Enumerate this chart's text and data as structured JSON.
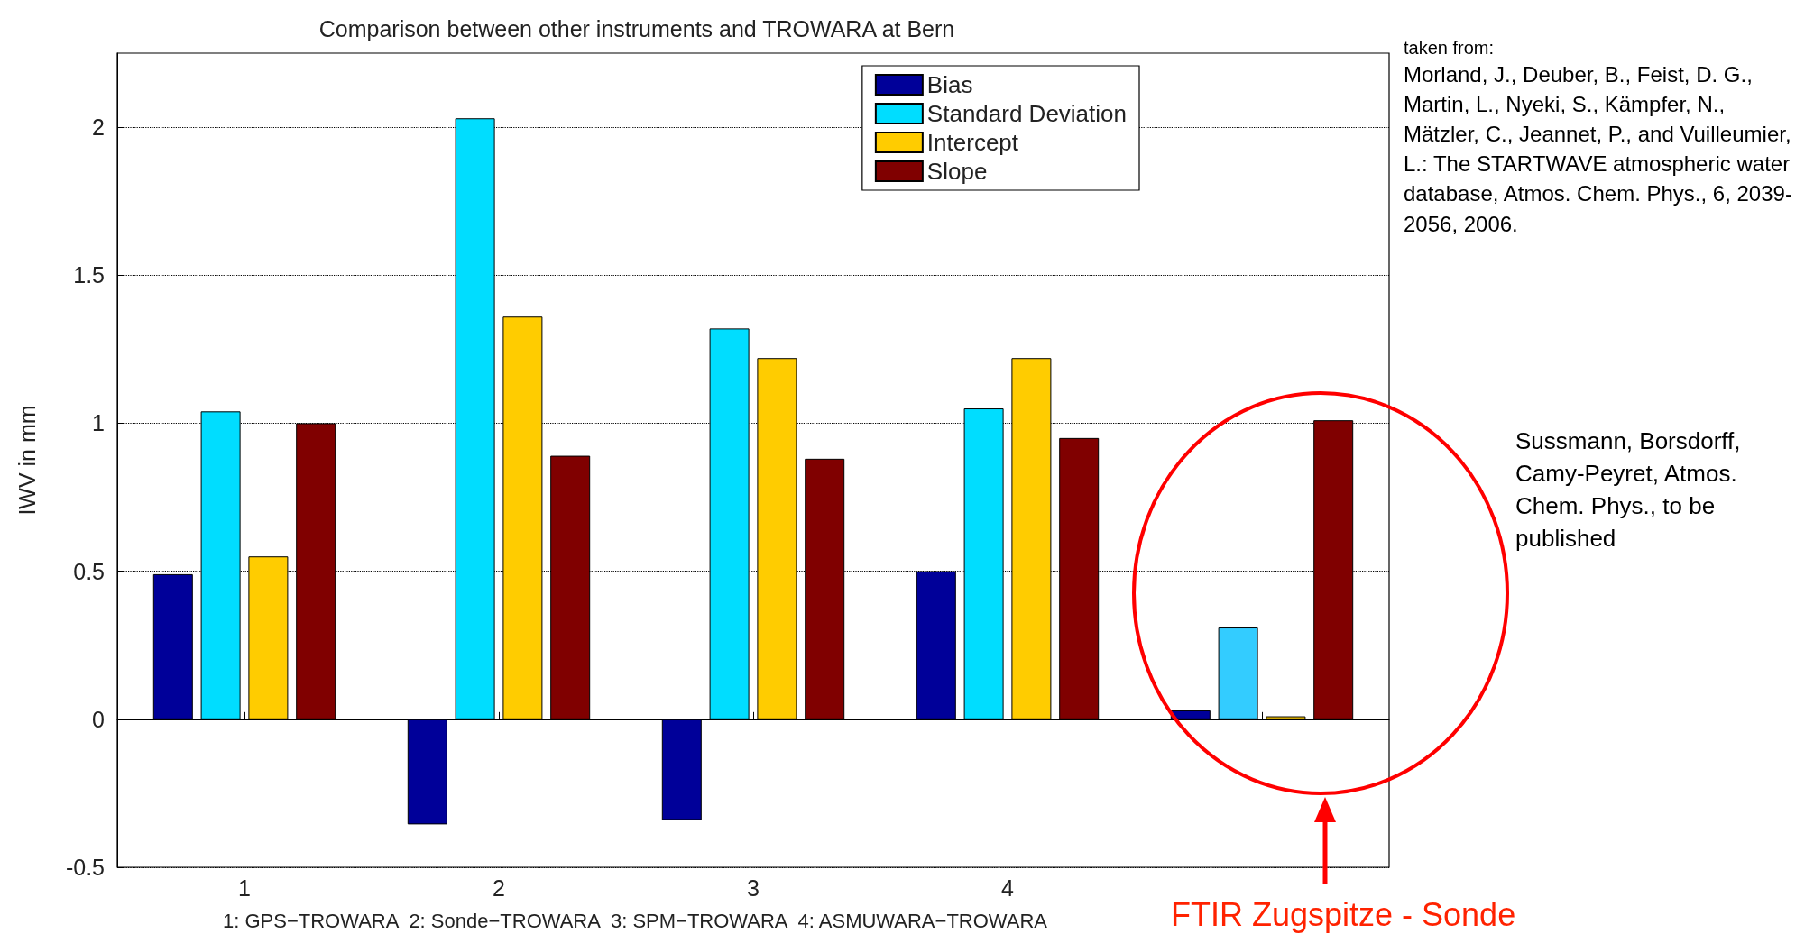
{
  "chart_data": {
    "type": "bar",
    "title": "Comparison between other instruments and TROWARA at Bern",
    "xlabel": "1: GPS−TROWARA  2: Sonde−TROWARA  3: SPM−TROWARA  4: ASMUWARA−TROWARA",
    "ylabel": "IWV in mm",
    "categories": [
      "1",
      "2",
      "3",
      "4",
      null
    ],
    "series": [
      {
        "name": "Bias",
        "color": "#000099",
        "values": [
          0.49,
          -0.355,
          -0.34,
          0.5,
          0.03
        ]
      },
      {
        "name": "Standard Deviation",
        "color": "#00ddff",
        "colors": [
          "#00ddff",
          "#00ddff",
          "#00ddff",
          "#00ddff",
          "#33ccff"
        ],
        "values": [
          1.04,
          2.03,
          1.32,
          1.05,
          0.31
        ]
      },
      {
        "name": "Intercept",
        "color": "#ffcc00",
        "values": [
          0.55,
          1.36,
          1.22,
          1.22,
          0.01
        ]
      },
      {
        "name": "Slope",
        "color": "#800000",
        "values": [
          1.0,
          0.89,
          0.88,
          0.95,
          1.01
        ]
      }
    ],
    "ylim": [
      -0.5,
      2.25
    ],
    "yticks": [
      -0.5,
      0,
      0.5,
      1,
      1.5,
      2
    ],
    "grid": "y",
    "legend": "top right",
    "annotations": [
      "taken from:",
      "Morland, J., Deuber, B., Feist, D. G., Martin, L., Nyeki, S., Kämpfer, N., Mätzler, C., Jeannet, P., and Vuilleumier, L.: The STARTWAVE atmospheric water database, Atmos. Chem. Phys., 6, 2039-2056, 2006.",
      "Sussmann, Borsdorff, Camy-Peyret, Atmos. Chem. Phys., to be published",
      "FTIR Zugspitze - Sonde"
    ]
  }
}
